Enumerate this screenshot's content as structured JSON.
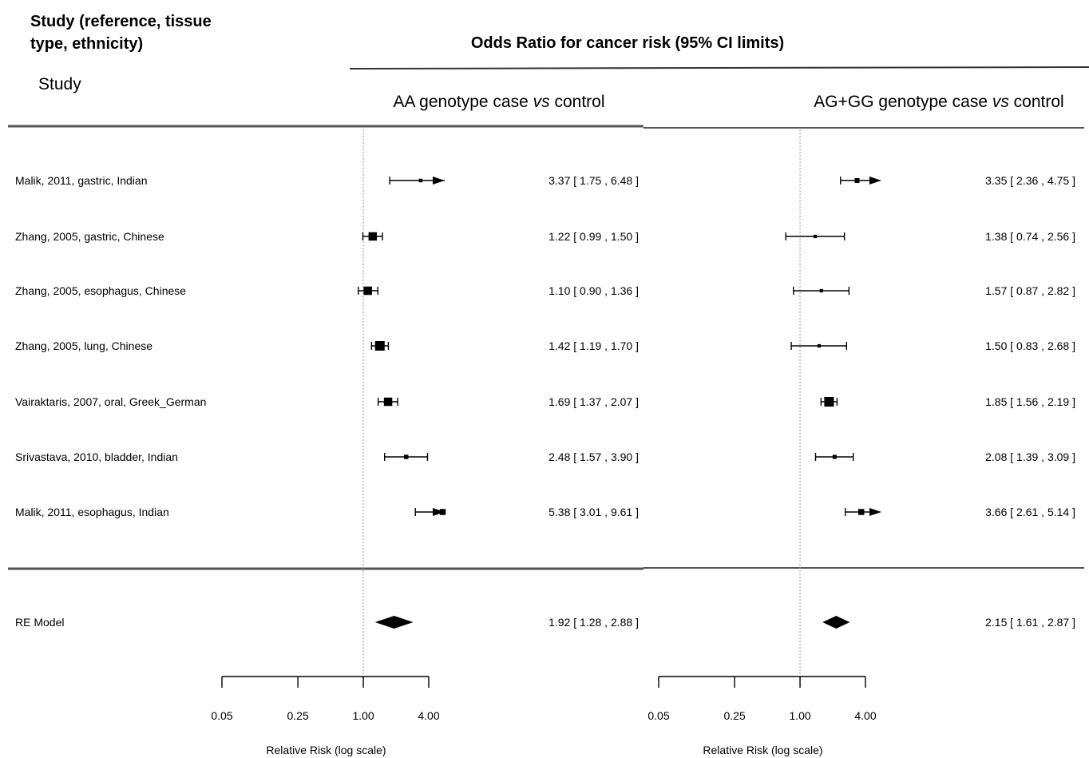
{
  "header": {
    "left_title": "Study (reference, tissue type, ethnicity)",
    "left_title_line1": "Study (reference, tissue",
    "left_title_line2": "type, ethnicity)",
    "main_title": "Odds Ratio for cancer risk (95% CI limits)",
    "study_label": "Study"
  },
  "colors": {
    "ink": "#000000",
    "refline": "#999999",
    "rule": "#333333"
  },
  "chart_data": [
    {
      "type": "forest",
      "panel_title_prefix": "AA genotype case ",
      "panel_title_italic": "vs",
      "panel_title_suffix": " control",
      "xlabel": "Relative Risk (log scale)",
      "xscale": "log",
      "xticks": [
        0.05,
        0.25,
        1.0,
        4.0
      ],
      "xtick_labels": [
        "0.05",
        "0.25",
        "1.00",
        "4.00"
      ],
      "reference_line": 1.0,
      "studies": [
        {
          "label": "Malik, 2011, gastric, Indian",
          "or": 3.37,
          "lo": 1.75,
          "hi": 6.48,
          "ci_text": "3.37 [ 1.75 , 6.48 ]",
          "weight": 0.5
        },
        {
          "label": "Zhang, 2005, gastric, Chinese",
          "or": 1.22,
          "lo": 0.99,
          "hi": 1.5,
          "ci_text": "1.22 [ 0.99 , 1.50 ]",
          "weight": 2.5
        },
        {
          "label": "Zhang, 2005, esophagus, Chinese",
          "or": 1.1,
          "lo": 0.9,
          "hi": 1.36,
          "ci_text": "1.10 [ 0.90 , 1.36 ]",
          "weight": 2.5
        },
        {
          "label": "Zhang, 2005, lung, Chinese",
          "or": 1.42,
          "lo": 1.19,
          "hi": 1.7,
          "ci_text": "1.42 [ 1.19 , 1.70 ]",
          "weight": 3
        },
        {
          "label": "Vairaktaris, 2007, oral, Greek_German",
          "or": 1.69,
          "lo": 1.37,
          "hi": 2.07,
          "ci_text": "1.69 [ 1.37 , 2.07 ]",
          "weight": 2.5
        },
        {
          "label": "Srivastava, 2010, bladder, Indian",
          "or": 2.48,
          "lo": 1.57,
          "hi": 3.9,
          "ci_text": "2.48 [ 1.57 , 3.90 ]",
          "weight": 0.8
        },
        {
          "label": "Malik, 2011, esophagus, Indian",
          "or": 5.38,
          "lo": 3.01,
          "hi": 9.61,
          "ci_text": "5.38 [ 3.01 , 9.61 ]",
          "weight": 1.5
        }
      ],
      "summary": {
        "label": "RE Model",
        "or": 1.92,
        "lo": 1.28,
        "hi": 2.88,
        "ci_text": "1.92 [ 1.28 , 2.88 ]"
      }
    },
    {
      "type": "forest",
      "panel_title_prefix": "AG+GG genotype case ",
      "panel_title_italic": "vs",
      "panel_title_suffix": " control",
      "xlabel": "Relative Risk (log scale)",
      "xscale": "log",
      "xticks": [
        0.05,
        0.25,
        1.0,
        4.0
      ],
      "xtick_labels": [
        "0.05",
        "0.25",
        "1.00",
        "4.00"
      ],
      "reference_line": 1.0,
      "studies": [
        {
          "or": 3.35,
          "lo": 2.36,
          "hi": 4.75,
          "ci_text": "3.35 [ 2.36 , 4.75 ]",
          "weight": 1
        },
        {
          "or": 1.38,
          "lo": 0.74,
          "hi": 2.56,
          "ci_text": "1.38 [ 0.74 , 2.56 ]",
          "weight": 0.4
        },
        {
          "or": 1.57,
          "lo": 0.87,
          "hi": 2.82,
          "ci_text": "1.57 [ 0.87 , 2.82 ]",
          "weight": 0.4
        },
        {
          "or": 1.5,
          "lo": 0.83,
          "hi": 2.68,
          "ci_text": "1.50 [ 0.83 , 2.68 ]",
          "weight": 0.4
        },
        {
          "or": 1.85,
          "lo": 1.56,
          "hi": 2.19,
          "ci_text": "1.85 [ 1.56 , 2.19 ]",
          "weight": 3
        },
        {
          "or": 2.08,
          "lo": 1.39,
          "hi": 3.09,
          "ci_text": "2.08 [ 1.39 , 3.09 ]",
          "weight": 0.7
        },
        {
          "or": 3.66,
          "lo": 2.61,
          "hi": 5.14,
          "ci_text": "3.66 [ 2.61 , 5.14 ]",
          "weight": 1.5
        }
      ],
      "summary": {
        "label": "RE Model",
        "or": 2.15,
        "lo": 1.61,
        "hi": 2.87,
        "ci_text": "2.15 [ 1.61 , 2.87 ]"
      }
    }
  ]
}
